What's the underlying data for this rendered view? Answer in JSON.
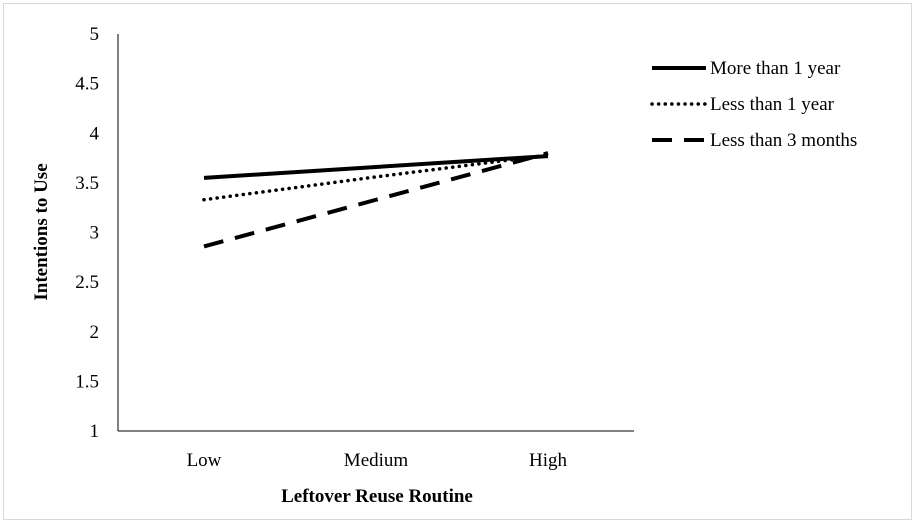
{
  "chart_data": {
    "type": "line",
    "title": "",
    "xlabel": "Leftover Reuse Routine",
    "ylabel": "Intentions to Use",
    "categories": [
      "Low",
      "Medium",
      "High"
    ],
    "ylim": [
      1,
      5
    ],
    "yticks": [
      "1",
      "1.5",
      "2",
      "2.5",
      "3",
      "3.5",
      "4",
      "4.5",
      "5"
    ],
    "grid": false,
    "legend_position": "top-right",
    "series": [
      {
        "name": "More than 1 year",
        "style": "solid",
        "color": "#000000",
        "values": [
          3.55,
          3.66,
          3.77
        ]
      },
      {
        "name": "Less than 1 year",
        "style": "dotted",
        "color": "#000000",
        "values": [
          3.33,
          3.56,
          3.78
        ]
      },
      {
        "name": "Less than 3 months",
        "style": "dashed",
        "color": "#000000",
        "values": [
          2.86,
          3.33,
          3.8
        ]
      }
    ]
  }
}
